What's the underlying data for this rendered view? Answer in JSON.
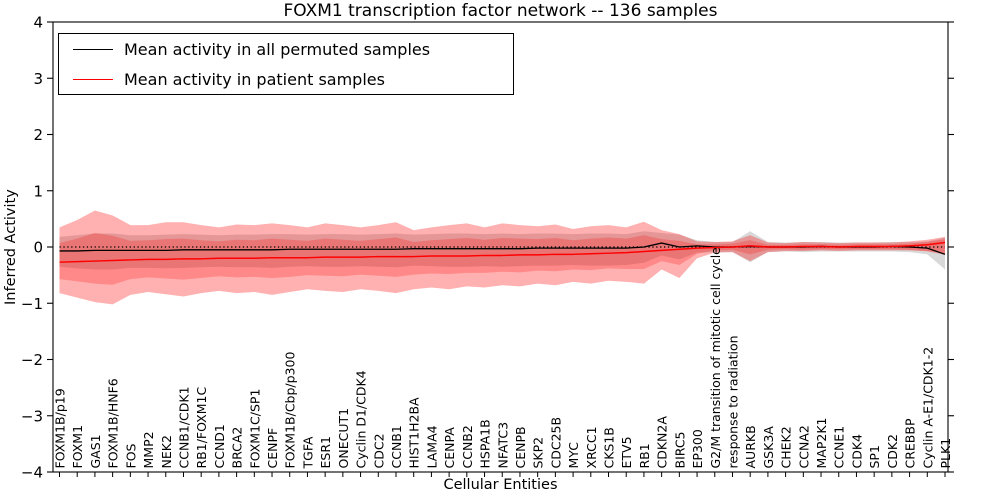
{
  "title": "FOXM1 transcription factor network -- 136 samples",
  "legend": {
    "items": [
      {
        "label": "Mean activity in all permuted samples",
        "color": "#000000"
      },
      {
        "label": "Mean activity in patient samples",
        "color": "#ff0000"
      }
    ]
  },
  "axes": {
    "ylabel": "Inferred Activity",
    "xlabel": "Cellular Entities",
    "ylim": [
      -4,
      4
    ],
    "yticks": [
      -4,
      -3,
      -2,
      -1,
      0,
      1,
      2,
      3,
      4
    ],
    "ytick_labels": [
      "−4",
      "−3",
      "−2",
      "−1",
      "0",
      "1",
      "2",
      "3",
      "4"
    ]
  },
  "chart_data": {
    "type": "line",
    "grid": false,
    "legend_position": "upper left",
    "zero_line": 0,
    "categories": [
      "FOXM1B/p19",
      "FOXM1",
      "GAS1",
      "FOXM1B/HNF6",
      "FOS",
      "MMP2",
      "NEK2",
      "CCNB1/CDK1",
      "RB1/FOXM1C",
      "CCND1",
      "BRCA2",
      "FOXM1C/SP1",
      "CENPF",
      "FOXM1B/Cbp/p300",
      "TGFA",
      "ESR1",
      "ONECUT1",
      "Cyclin D1/CDK4",
      "CDC2",
      "CCNB1",
      "HIST1H2BA",
      "LAMA4",
      "CENPA",
      "CCNB2",
      "HSPA1B",
      "NFATC3",
      "CENPB",
      "SKP2",
      "CDC25B",
      "MYC",
      "XRCC1",
      "CKS1B",
      "ETV5",
      "RB1",
      "CDKN2A",
      "BIRC5",
      "EP300",
      "G2/M transition of mitotic cell cycle",
      "response to radiation",
      "AURKB",
      "GSK3A",
      "CHEK2",
      "CCNA2",
      "MAP2K1",
      "CCNE1",
      "CDK4",
      "SP1",
      "CDK2",
      "CREBBP",
      "Cyclin A-E1/CDK1-2",
      "PLK1"
    ],
    "series": [
      {
        "name": "Mean activity in all permuted samples",
        "color": "#000000",
        "band_color": "#808080",
        "band_opacity": 0.3,
        "values": [
          -0.07,
          -0.07,
          -0.06,
          -0.06,
          -0.06,
          -0.06,
          -0.06,
          -0.05,
          -0.05,
          -0.05,
          -0.05,
          -0.05,
          -0.05,
          -0.04,
          -0.04,
          -0.04,
          -0.04,
          -0.04,
          -0.04,
          -0.04,
          -0.03,
          -0.03,
          -0.03,
          -0.03,
          -0.03,
          -0.03,
          -0.03,
          -0.02,
          -0.02,
          -0.02,
          -0.02,
          -0.02,
          -0.02,
          0.0,
          0.07,
          0.0,
          0.02,
          0.0,
          0.0,
          0.01,
          0.0,
          0.0,
          0.0,
          0.01,
          0.0,
          0.0,
          0.0,
          0.01,
          0.0,
          -0.02,
          -0.13
        ],
        "band_upper": [
          0.18,
          0.21,
          0.24,
          0.24,
          0.21,
          0.21,
          0.22,
          0.23,
          0.22,
          0.21,
          0.22,
          0.22,
          0.23,
          0.23,
          0.22,
          0.23,
          0.23,
          0.22,
          0.23,
          0.24,
          0.22,
          0.23,
          0.24,
          0.24,
          0.23,
          0.24,
          0.23,
          0.24,
          0.24,
          0.23,
          0.24,
          0.24,
          0.23,
          0.28,
          0.25,
          0.22,
          0.12,
          0.09,
          0.09,
          0.28,
          0.09,
          0.08,
          0.09,
          0.09,
          0.08,
          0.08,
          0.08,
          0.09,
          0.09,
          0.1,
          0.17
        ],
        "band_lower": [
          -0.35,
          -0.38,
          -0.4,
          -0.4,
          -0.37,
          -0.37,
          -0.38,
          -0.37,
          -0.36,
          -0.35,
          -0.36,
          -0.36,
          -0.37,
          -0.35,
          -0.34,
          -0.35,
          -0.35,
          -0.34,
          -0.35,
          -0.36,
          -0.33,
          -0.34,
          -0.35,
          -0.35,
          -0.34,
          -0.35,
          -0.34,
          -0.33,
          -0.33,
          -0.32,
          -0.33,
          -0.33,
          -0.32,
          -0.28,
          -0.15,
          -0.22,
          -0.1,
          -0.09,
          -0.09,
          -0.27,
          -0.09,
          -0.08,
          -0.09,
          -0.08,
          -0.08,
          -0.08,
          -0.08,
          -0.08,
          -0.09,
          -0.13,
          -0.4
        ]
      },
      {
        "name": "Mean activity in patient samples",
        "color": "#ff0000",
        "band_color": "#ff0000",
        "band_opacity": 0.31,
        "band_inner_opacity": 0.22,
        "values": [
          -0.27,
          -0.26,
          -0.25,
          -0.24,
          -0.23,
          -0.22,
          -0.22,
          -0.21,
          -0.21,
          -0.2,
          -0.2,
          -0.2,
          -0.19,
          -0.19,
          -0.19,
          -0.18,
          -0.18,
          -0.18,
          -0.17,
          -0.17,
          -0.17,
          -0.16,
          -0.16,
          -0.16,
          -0.15,
          -0.15,
          -0.14,
          -0.14,
          -0.13,
          -0.13,
          -0.12,
          -0.11,
          -0.1,
          -0.08,
          -0.06,
          -0.04,
          -0.02,
          -0.01,
          0.0,
          0.02,
          0.0,
          0.0,
          0.01,
          0.01,
          0.0,
          0.01,
          0.01,
          0.01,
          0.02,
          0.04,
          0.08
        ],
        "band_upper": [
          0.35,
          0.48,
          0.65,
          0.56,
          0.39,
          0.39,
          0.44,
          0.44,
          0.39,
          0.35,
          0.4,
          0.39,
          0.42,
          0.39,
          0.35,
          0.42,
          0.39,
          0.35,
          0.39,
          0.44,
          0.3,
          0.35,
          0.39,
          0.42,
          0.35,
          0.42,
          0.39,
          0.37,
          0.4,
          0.32,
          0.37,
          0.39,
          0.35,
          0.45,
          0.3,
          0.23,
          0.1,
          0.09,
          0.1,
          0.21,
          0.08,
          0.07,
          0.09,
          0.08,
          0.07,
          0.08,
          0.08,
          0.08,
          0.1,
          0.13,
          0.18
        ],
        "band_lower": [
          -0.82,
          -0.9,
          -0.98,
          -1.02,
          -0.85,
          -0.8,
          -0.84,
          -0.88,
          -0.82,
          -0.78,
          -0.82,
          -0.8,
          -0.85,
          -0.8,
          -0.75,
          -0.78,
          -0.8,
          -0.75,
          -0.78,
          -0.82,
          -0.75,
          -0.72,
          -0.75,
          -0.7,
          -0.72,
          -0.68,
          -0.7,
          -0.65,
          -0.68,
          -0.62,
          -0.65,
          -0.6,
          -0.62,
          -0.65,
          -0.4,
          -0.55,
          -0.2,
          -0.1,
          -0.09,
          -0.25,
          -0.09,
          -0.07,
          -0.07,
          -0.06,
          -0.07,
          -0.06,
          -0.06,
          -0.06,
          -0.06,
          -0.07,
          -0.12
        ],
        "band_inner_upper": [
          0.07,
          0.15,
          0.25,
          0.2,
          0.11,
          0.12,
          0.14,
          0.15,
          0.12,
          0.1,
          0.13,
          0.12,
          0.15,
          0.13,
          0.11,
          0.15,
          0.13,
          0.11,
          0.14,
          0.17,
          0.09,
          0.12,
          0.14,
          0.16,
          0.13,
          0.16,
          0.15,
          0.14,
          0.16,
          0.12,
          0.15,
          0.17,
          0.15,
          0.21,
          0.14,
          0.11,
          0.05,
          0.05,
          0.06,
          0.12,
          0.04,
          0.04,
          0.05,
          0.05,
          0.04,
          0.05,
          0.05,
          0.05,
          0.06,
          0.09,
          0.14
        ],
        "band_inner_lower": [
          -0.57,
          -0.61,
          -0.65,
          -0.67,
          -0.57,
          -0.54,
          -0.56,
          -0.58,
          -0.55,
          -0.52,
          -0.54,
          -0.53,
          -0.55,
          -0.53,
          -0.5,
          -0.51,
          -0.52,
          -0.49,
          -0.51,
          -0.53,
          -0.49,
          -0.47,
          -0.48,
          -0.46,
          -0.46,
          -0.44,
          -0.45,
          -0.42,
          -0.43,
          -0.4,
          -0.41,
          -0.38,
          -0.39,
          -0.39,
          -0.25,
          -0.32,
          -0.12,
          -0.06,
          -0.05,
          -0.13,
          -0.05,
          -0.04,
          -0.05,
          -0.04,
          -0.04,
          -0.04,
          -0.04,
          -0.04,
          -0.05,
          -0.08,
          -0.14
        ]
      }
    ]
  }
}
